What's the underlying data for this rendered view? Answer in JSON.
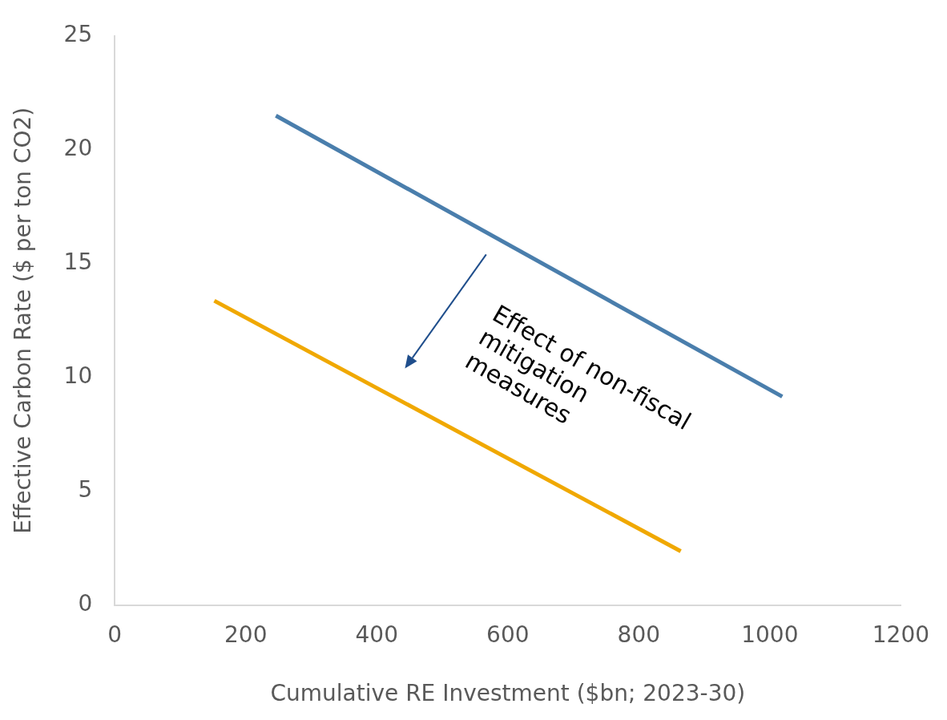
{
  "chart_data": {
    "type": "line",
    "xlabel": "Cumulative RE Investment ($bn; 2023-30)",
    "ylabel": "Effective Carbon Rate ($ per ton CO2)",
    "series": [
      {
        "color": "#4a7eac",
        "x": [
          246,
          1019
        ],
        "values": [
          21.5,
          9.16
        ]
      },
      {
        "color": "#f0a800",
        "x": [
          152,
          864
        ],
        "values": [
          13.37,
          2.37
        ]
      }
    ],
    "xlim": [
      0,
      1200
    ],
    "xticks": [
      0,
      200,
      400,
      600,
      800,
      1000,
      1200
    ],
    "ylim": [
      0,
      25
    ],
    "yticks": [
      0,
      5,
      10,
      15,
      20,
      25
    ],
    "grid": false,
    "legend": false,
    "marker": "none",
    "line_style": "solid",
    "annotations": [
      "Effect of non-fiscal mitigation measures"
    ]
  }
}
